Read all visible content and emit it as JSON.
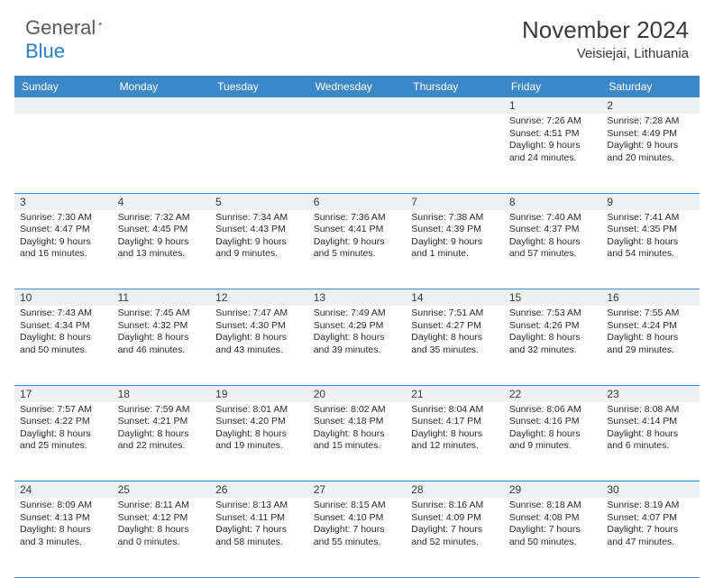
{
  "logo": {
    "text1": "General",
    "text2": "Blue"
  },
  "title": "November 2024",
  "location": "Veisiejai, Lithuania",
  "weekdays": [
    "Sunday",
    "Monday",
    "Tuesday",
    "Wednesday",
    "Thursday",
    "Friday",
    "Saturday"
  ],
  "colors": {
    "header_bg": "#3c87c7",
    "header_text": "#ffffff",
    "daynum_bg": "#eef0f1",
    "border": "#3c87c7",
    "body_text": "#2a2a2a",
    "title_text": "#3a3a3a",
    "logo_gray": "#5a5a5a",
    "logo_blue": "#2b7dc4"
  },
  "weeks": [
    [
      null,
      null,
      null,
      null,
      null,
      {
        "n": "1",
        "sr": "7:26 AM",
        "ss": "4:51 PM",
        "dl": "9 hours and 24 minutes."
      },
      {
        "n": "2",
        "sr": "7:28 AM",
        "ss": "4:49 PM",
        "dl": "9 hours and 20 minutes."
      }
    ],
    [
      {
        "n": "3",
        "sr": "7:30 AM",
        "ss": "4:47 PM",
        "dl": "9 hours and 16 minutes."
      },
      {
        "n": "4",
        "sr": "7:32 AM",
        "ss": "4:45 PM",
        "dl": "9 hours and 13 minutes."
      },
      {
        "n": "5",
        "sr": "7:34 AM",
        "ss": "4:43 PM",
        "dl": "9 hours and 9 minutes."
      },
      {
        "n": "6",
        "sr": "7:36 AM",
        "ss": "4:41 PM",
        "dl": "9 hours and 5 minutes."
      },
      {
        "n": "7",
        "sr": "7:38 AM",
        "ss": "4:39 PM",
        "dl": "9 hours and 1 minute."
      },
      {
        "n": "8",
        "sr": "7:40 AM",
        "ss": "4:37 PM",
        "dl": "8 hours and 57 minutes."
      },
      {
        "n": "9",
        "sr": "7:41 AM",
        "ss": "4:35 PM",
        "dl": "8 hours and 54 minutes."
      }
    ],
    [
      {
        "n": "10",
        "sr": "7:43 AM",
        "ss": "4:34 PM",
        "dl": "8 hours and 50 minutes."
      },
      {
        "n": "11",
        "sr": "7:45 AM",
        "ss": "4:32 PM",
        "dl": "8 hours and 46 minutes."
      },
      {
        "n": "12",
        "sr": "7:47 AM",
        "ss": "4:30 PM",
        "dl": "8 hours and 43 minutes."
      },
      {
        "n": "13",
        "sr": "7:49 AM",
        "ss": "4:29 PM",
        "dl": "8 hours and 39 minutes."
      },
      {
        "n": "14",
        "sr": "7:51 AM",
        "ss": "4:27 PM",
        "dl": "8 hours and 35 minutes."
      },
      {
        "n": "15",
        "sr": "7:53 AM",
        "ss": "4:26 PM",
        "dl": "8 hours and 32 minutes."
      },
      {
        "n": "16",
        "sr": "7:55 AM",
        "ss": "4:24 PM",
        "dl": "8 hours and 29 minutes."
      }
    ],
    [
      {
        "n": "17",
        "sr": "7:57 AM",
        "ss": "4:22 PM",
        "dl": "8 hours and 25 minutes."
      },
      {
        "n": "18",
        "sr": "7:59 AM",
        "ss": "4:21 PM",
        "dl": "8 hours and 22 minutes."
      },
      {
        "n": "19",
        "sr": "8:01 AM",
        "ss": "4:20 PM",
        "dl": "8 hours and 19 minutes."
      },
      {
        "n": "20",
        "sr": "8:02 AM",
        "ss": "4:18 PM",
        "dl": "8 hours and 15 minutes."
      },
      {
        "n": "21",
        "sr": "8:04 AM",
        "ss": "4:17 PM",
        "dl": "8 hours and 12 minutes."
      },
      {
        "n": "22",
        "sr": "8:06 AM",
        "ss": "4:16 PM",
        "dl": "8 hours and 9 minutes."
      },
      {
        "n": "23",
        "sr": "8:08 AM",
        "ss": "4:14 PM",
        "dl": "8 hours and 6 minutes."
      }
    ],
    [
      {
        "n": "24",
        "sr": "8:09 AM",
        "ss": "4:13 PM",
        "dl": "8 hours and 3 minutes."
      },
      {
        "n": "25",
        "sr": "8:11 AM",
        "ss": "4:12 PM",
        "dl": "8 hours and 0 minutes."
      },
      {
        "n": "26",
        "sr": "8:13 AM",
        "ss": "4:11 PM",
        "dl": "7 hours and 58 minutes."
      },
      {
        "n": "27",
        "sr": "8:15 AM",
        "ss": "4:10 PM",
        "dl": "7 hours and 55 minutes."
      },
      {
        "n": "28",
        "sr": "8:16 AM",
        "ss": "4:09 PM",
        "dl": "7 hours and 52 minutes."
      },
      {
        "n": "29",
        "sr": "8:18 AM",
        "ss": "4:08 PM",
        "dl": "7 hours and 50 minutes."
      },
      {
        "n": "30",
        "sr": "8:19 AM",
        "ss": "4:07 PM",
        "dl": "7 hours and 47 minutes."
      }
    ]
  ]
}
